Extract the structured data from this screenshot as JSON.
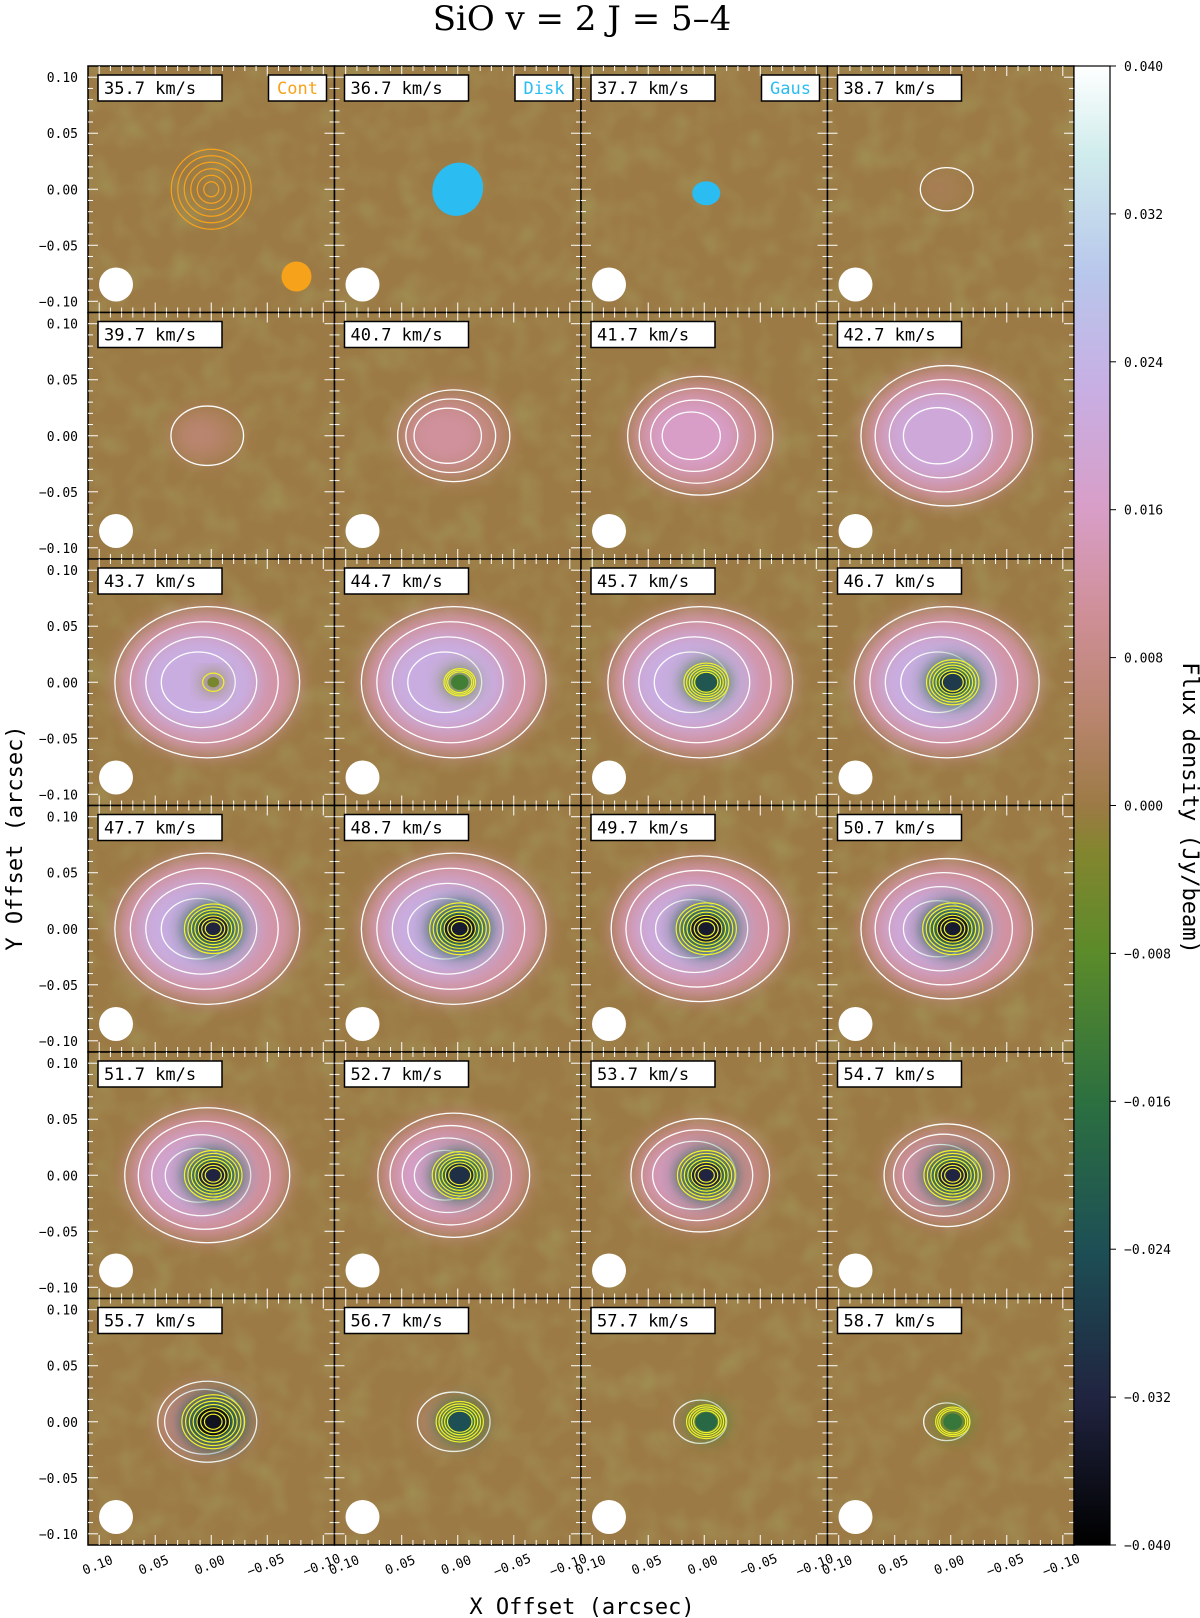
{
  "chart_data": {
    "type": "heatmap",
    "title": "SiO  v = 2  J = 5–4",
    "xlabel": "X Offset  (arcsec)",
    "ylabel": "Y Offset  (arcsec)",
    "colorbar_label": "Flux density  (Jy/beam)",
    "colorbar_range": [
      -0.04,
      0.04
    ],
    "colorbar_ticks": [
      "0.040",
      "0.032",
      "0.024",
      "0.016",
      "0.008",
      "0.000",
      "−0.008",
      "−0.016",
      "−0.024",
      "−0.032",
      "−0.040"
    ],
    "x_range": [
      0.11,
      -0.11
    ],
    "y_range": [
      -0.11,
      0.11
    ],
    "x_tick_labels": [
      "0.10",
      "0.05",
      "0.00",
      "−0.05",
      "−0.10"
    ],
    "y_tick_labels": [
      "0.10",
      "0.05",
      "0.00",
      "−0.05",
      "−0.10"
    ],
    "grid": {
      "rows": 6,
      "cols": 4
    },
    "insets": [
      {
        "label": "Cont",
        "color": "#f7a21b"
      },
      {
        "label": "Disk",
        "color": "#2bbcf2"
      },
      {
        "label": "Gaus",
        "color": "#2bbcf2"
      }
    ],
    "channels": [
      {
        "v": "35.7 km/s",
        "peak": 0.0,
        "ring": 0.0
      },
      {
        "v": "36.7 km/s",
        "peak": 0.0,
        "ring": 0.0
      },
      {
        "v": "37.7 km/s",
        "peak": -0.001,
        "ring": 0.0
      },
      {
        "v": "38.7 km/s",
        "peak": 0.0,
        "ring": 0.002
      },
      {
        "v": "39.7 km/s",
        "peak": 0.0,
        "ring": 0.005
      },
      {
        "v": "40.7 km/s",
        "peak": 0.0,
        "ring": 0.011
      },
      {
        "v": "41.7 km/s",
        "peak": 0.0,
        "ring": 0.016
      },
      {
        "v": "42.7 km/s",
        "peak": 0.002,
        "ring": 0.02
      },
      {
        "v": "43.7 km/s",
        "peak": -0.004,
        "ring": 0.022
      },
      {
        "v": "44.7 km/s",
        "peak": -0.012,
        "ring": 0.022
      },
      {
        "v": "45.7 km/s",
        "peak": -0.022,
        "ring": 0.022
      },
      {
        "v": "46.7 km/s",
        "peak": -0.028,
        "ring": 0.022
      },
      {
        "v": "47.7 km/s",
        "peak": -0.032,
        "ring": 0.022
      },
      {
        "v": "48.7 km/s",
        "peak": -0.034,
        "ring": 0.022
      },
      {
        "v": "49.7 km/s",
        "peak": -0.034,
        "ring": 0.021
      },
      {
        "v": "50.7 km/s",
        "peak": -0.034,
        "ring": 0.02
      },
      {
        "v": "51.7 km/s",
        "peak": -0.032,
        "ring": 0.019
      },
      {
        "v": "52.7 km/s",
        "peak": -0.03,
        "ring": 0.017
      },
      {
        "v": "53.7 km/s",
        "peak": -0.032,
        "ring": 0.015
      },
      {
        "v": "54.7 km/s",
        "peak": -0.032,
        "ring": 0.013
      },
      {
        "v": "55.7 km/s",
        "peak": -0.036,
        "ring": 0.009
      },
      {
        "v": "56.7 km/s",
        "peak": -0.024,
        "ring": 0.005
      },
      {
        "v": "57.7 km/s",
        "peak": -0.018,
        "ring": 0.002
      },
      {
        "v": "58.7 km/s",
        "peak": -0.014,
        "ring": 0.001
      }
    ]
  }
}
